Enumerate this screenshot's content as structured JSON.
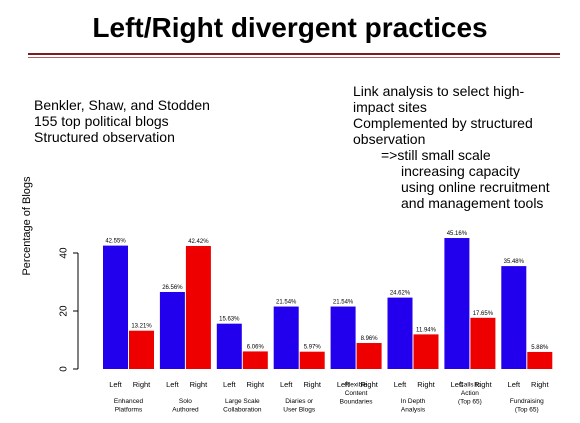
{
  "slide": {
    "title": "Left/Right divergent practices",
    "left_block": [
      "Benkler, Shaw, and Stodden",
      "155 top political blogs",
      "Structured observation"
    ],
    "right_block": [
      "Link analysis to select high-",
      "impact sites",
      "Complemented by structured",
      "observation",
      "=>still small scale",
      "increasing capacity",
      "using online recruitment",
      "and management tools"
    ]
  },
  "chart_data": {
    "type": "bar",
    "ylabel": "Percentage of Blogs",
    "ylim": [
      0,
      55
    ],
    "yticks": [
      0,
      20,
      40
    ],
    "grid": false,
    "group_labels": [
      "Left",
      "Right"
    ],
    "colors": {
      "Left": "#2200ee",
      "Right": "#ee0000"
    },
    "categories": [
      [
        "Enhanced",
        "Platforms"
      ],
      [
        "Solo",
        "Authored"
      ],
      [
        "Large Scale",
        "Collaboration"
      ],
      [
        "Diaries or",
        "User Blogs"
      ],
      [
        "Flexible",
        "Content",
        "Boundaries"
      ],
      [
        "In Depth",
        "Analysis"
      ],
      [
        "Calls to",
        "Action",
        "(Top 65)"
      ],
      [
        "Fundraising",
        "(Top 65)"
      ]
    ],
    "series": [
      {
        "name": "Left",
        "values": [
          42.55,
          26.56,
          15.63,
          21.54,
          21.54,
          24.62,
          45.16,
          35.48
        ],
        "labels": [
          "42.55%",
          "26.56%",
          "15.63%",
          "21.54%",
          "21.54%",
          "24.62%",
          "45.16%",
          "35.48%"
        ]
      },
      {
        "name": "Right",
        "values": [
          13.21,
          42.42,
          6.06,
          5.97,
          8.96,
          11.94,
          17.65,
          5.88
        ],
        "labels": [
          "13.21%",
          "42.42%",
          "6.06%",
          "5.97%",
          "8.96%",
          "11.94%",
          "17.65%",
          "5.88%"
        ]
      }
    ]
  }
}
